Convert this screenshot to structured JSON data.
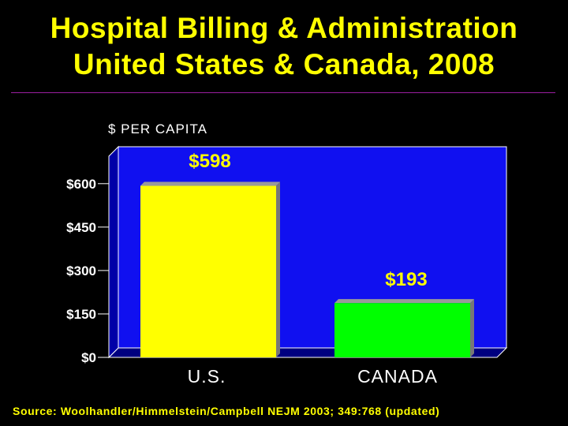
{
  "title_line1": "Hospital Billing & Administration",
  "title_line2": "United States & Canada, 2008",
  "source": "Source: Woolhandler/Himmelstein/Campbell NEJM 2003; 349:768 (updated)",
  "colors": {
    "background": "#000000",
    "title": "#ffff00",
    "plot_area": "#1010f0",
    "us_bar": "#ffff00",
    "canada_bar": "#00ff00",
    "rule": "#9b1fa0"
  },
  "chart_data": {
    "type": "bar",
    "ylabel": "$ PER CAPITA",
    "categories": [
      "U.S.",
      "CANADA"
    ],
    "values": [
      598,
      193
    ],
    "value_labels": [
      "$598",
      "$193"
    ],
    "yticks": [
      0,
      150,
      300,
      450,
      600
    ],
    "ytick_labels": [
      "$0",
      "$150",
      "$300",
      "$450",
      "$600"
    ],
    "ylim": [
      0,
      700
    ],
    "grid": false,
    "legend": "none"
  }
}
